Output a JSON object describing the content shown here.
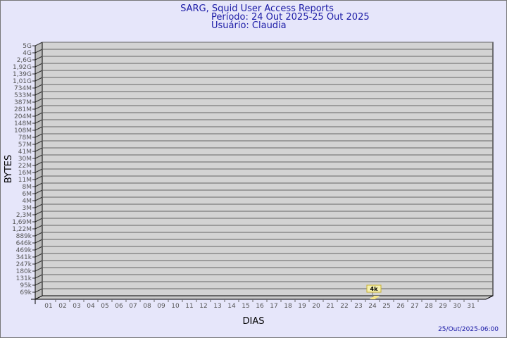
{
  "header": {
    "title": "SARG, Squid User Access Reports",
    "period": "Período: 24 Out 2025-25 Out 2025",
    "user": "Usuário: Claudia"
  },
  "footer": {
    "timestamp": "25/Out/2025-06:00"
  },
  "chart_data": {
    "type": "bar",
    "xlabel": "DIAS",
    "ylabel": "BYTES",
    "categories": [
      "01",
      "02",
      "03",
      "04",
      "05",
      "06",
      "07",
      "08",
      "09",
      "10",
      "11",
      "12",
      "13",
      "14",
      "15",
      "16",
      "17",
      "18",
      "19",
      "20",
      "21",
      "22",
      "23",
      "24",
      "25",
      "26",
      "27",
      "28",
      "29",
      "30",
      "31"
    ],
    "y_tick_labels": [
      "5G",
      "4G",
      "2,6G",
      "1,92G",
      "1,39G",
      "1,01G",
      "734M",
      "533M",
      "387M",
      "281M",
      "204M",
      "148M",
      "108M",
      "78M",
      "57M",
      "41M",
      "30M",
      "22M",
      "16M",
      "11M",
      "8M",
      "6M",
      "4M",
      "3M",
      "2,3M",
      "1,69M",
      "1,22M",
      "889k",
      "646k",
      "469k",
      "341k",
      "247k",
      "180k",
      "131k",
      "95k",
      "69k"
    ],
    "y_scale": "log",
    "grid": true,
    "series": [
      {
        "points": [
          {
            "x": "24",
            "value": 4000,
            "label": "4k"
          }
        ]
      }
    ],
    "colors": {
      "panel": "#d3d3d3",
      "side": "#bdbdbd",
      "bar": "#f5e58a",
      "label_box": "#f5f0b0",
      "label_border": "#c8b030",
      "title": "#1a1aa6"
    }
  }
}
